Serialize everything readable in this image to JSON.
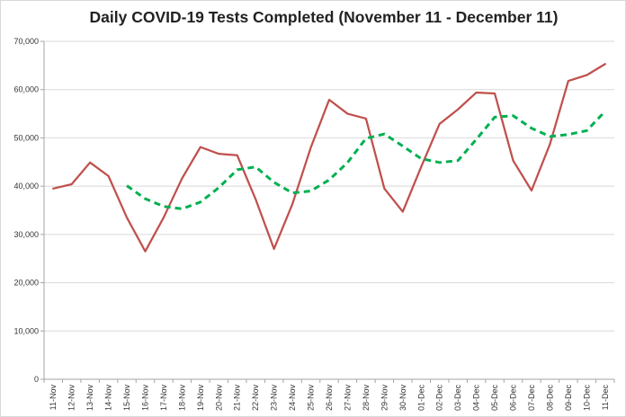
{
  "chart_data": {
    "type": "line",
    "title": "Daily COVID-19 Tests Completed (November 11 - December 11)",
    "xlabel": "",
    "ylabel": "",
    "ylim": [
      0,
      70000
    ],
    "y_ticks": [
      "0",
      "10,000",
      "20,000",
      "30,000",
      "40,000",
      "50,000",
      "60,000",
      "70,000"
    ],
    "grid": "horizontal",
    "legend": "none",
    "categories": [
      "11-Nov",
      "12-Nov",
      "13-Nov",
      "14-Nov",
      "15-Nov",
      "16-Nov",
      "17-Nov",
      "18-Nov",
      "19-Nov",
      "20-Nov",
      "21-Nov",
      "22-Nov",
      "23-Nov",
      "24-Nov",
      "25-Nov",
      "26-Nov",
      "27-Nov",
      "28-Nov",
      "29-Nov",
      "30-Nov",
      "01-Dec",
      "02-Dec",
      "03-Dec",
      "04-Dec",
      "05-Dec",
      "06-Dec",
      "07-Dec",
      "08-Dec",
      "09-Dec",
      "10-Dec",
      "11-Dec"
    ],
    "series": [
      {
        "style": "solid",
        "color": "#C0504D",
        "values": [
          39500,
          40400,
          44900,
          42100,
          33500,
          26500,
          33500,
          41600,
          48100,
          46700,
          46400,
          37300,
          27000,
          36300,
          48000,
          57900,
          55000,
          54000,
          39500,
          34700,
          44000,
          52900,
          55900,
          59400,
          59200,
          45300,
          39100,
          48700,
          61800,
          63000,
          65300
        ]
      },
      {
        "style": "dashed",
        "color": "#00B050",
        "values": [
          null,
          null,
          null,
          null,
          40100,
          37400,
          35800,
          35300,
          36700,
          39700,
          43400,
          44000,
          40800,
          38600,
          39000,
          41300,
          44900,
          49900,
          50800,
          48300,
          45700,
          44900,
          45300,
          49700,
          54300,
          54600,
          52000,
          50300,
          50700,
          51500,
          55500
        ]
      }
    ]
  },
  "colors": {
    "line_actual": "#C0504D",
    "line_average": "#00B050",
    "gridline": "#D9D9D9",
    "axis": "#A6A6A6"
  }
}
